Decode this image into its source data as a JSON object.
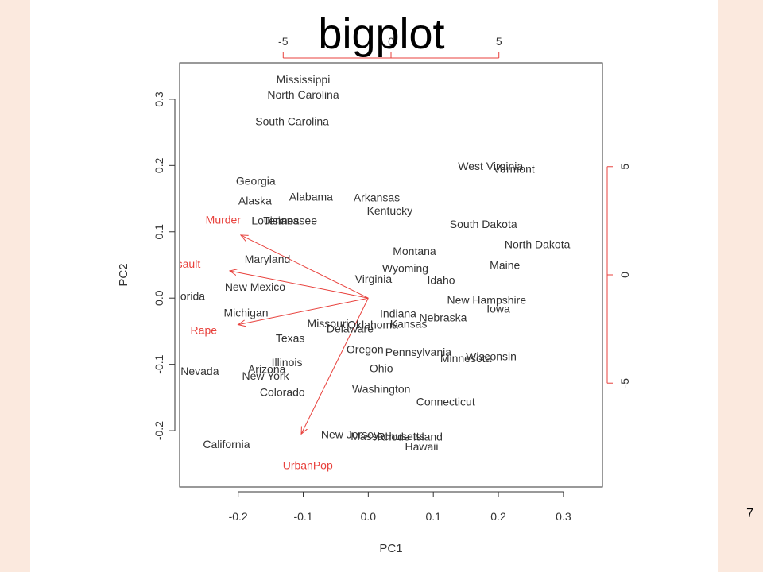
{
  "slide": {
    "title": "bigplot",
    "page_number": "7"
  },
  "colors": {
    "background": "#fbe9de",
    "slide": "#ffffff",
    "points": "#333333",
    "loadings": "#e8413c",
    "axis": "#333333"
  },
  "chart_data": {
    "type": "scatter",
    "subtype": "biplot",
    "title": "",
    "xlabel": "PC1",
    "ylabel": "PC2",
    "xlim": [
      -0.29,
      0.36
    ],
    "ylim": [
      -0.285,
      0.355
    ],
    "x_ticks": [
      "-0.2",
      "-0.1",
      "0.0",
      "0.1",
      "0.2",
      "0.3"
    ],
    "x_tick_values": [
      -0.2,
      -0.1,
      0.0,
      0.1,
      0.2,
      0.3
    ],
    "y_ticks": [
      "-0.2",
      "-0.1",
      "0.0",
      "0.1",
      "0.2",
      "0.3"
    ],
    "y_tick_values": [
      -0.2,
      -0.1,
      0.0,
      0.1,
      0.2,
      0.3
    ],
    "top_axis": {
      "ticks": [
        "-5",
        "0",
        "5"
      ],
      "values": [
        -5,
        0,
        5
      ],
      "color": "#e8413c"
    },
    "right_axis": {
      "ticks": [
        "-5",
        "0",
        "5"
      ],
      "values": [
        -5,
        0,
        5
      ],
      "color": "#e8413c"
    },
    "secondary_range": [
      -9.8,
      9.8
    ],
    "points": [
      {
        "label": "Mississippi",
        "x": -0.1,
        "y": 0.33
      },
      {
        "label": "North Carolina",
        "x": -0.1,
        "y": 0.307
      },
      {
        "label": "South Carolina",
        "x": -0.117,
        "y": 0.267
      },
      {
        "label": "West Virginia",
        "x": 0.188,
        "y": 0.199
      },
      {
        "label": "Vermont",
        "x": 0.224,
        "y": 0.195
      },
      {
        "label": "Georgia",
        "x": -0.173,
        "y": 0.177
      },
      {
        "label": "Alabama",
        "x": -0.088,
        "y": 0.153
      },
      {
        "label": "Arkansas",
        "x": 0.013,
        "y": 0.152
      },
      {
        "label": "Alaska",
        "x": -0.174,
        "y": 0.147
      },
      {
        "label": "Kentucky",
        "x": 0.033,
        "y": 0.132
      },
      {
        "label": "Louisiana",
        "x": -0.143,
        "y": 0.117
      },
      {
        "label": "Tennessee",
        "x": -0.12,
        "y": 0.117
      },
      {
        "label": "South Dakota",
        "x": 0.177,
        "y": 0.112
      },
      {
        "label": "North Dakota",
        "x": 0.26,
        "y": 0.081
      },
      {
        "label": "Montana",
        "x": 0.071,
        "y": 0.071
      },
      {
        "label": "Maryland",
        "x": -0.155,
        "y": 0.059
      },
      {
        "label": "Maine",
        "x": 0.21,
        "y": 0.05
      },
      {
        "label": "Wyoming",
        "x": 0.057,
        "y": 0.045
      },
      {
        "label": "Virginia",
        "x": 0.008,
        "y": 0.029
      },
      {
        "label": "Idaho",
        "x": 0.112,
        "y": 0.027
      },
      {
        "label": "New Mexico",
        "x": -0.174,
        "y": 0.017
      },
      {
        "label": "Florida",
        "x": -0.277,
        "y": 0.003
      },
      {
        "label": "New Hampshire",
        "x": 0.182,
        "y": -0.003
      },
      {
        "label": "Iowa",
        "x": 0.2,
        "y": -0.016
      },
      {
        "label": "Michigan",
        "x": -0.188,
        "y": -0.022
      },
      {
        "label": "Indiana",
        "x": 0.046,
        "y": -0.023
      },
      {
        "label": "Nebraska",
        "x": 0.115,
        "y": -0.029
      },
      {
        "label": "Missouri",
        "x": -0.062,
        "y": -0.038
      },
      {
        "label": "Oklahoma",
        "x": 0.007,
        "y": -0.04
      },
      {
        "label": "Kansas",
        "x": 0.062,
        "y": -0.039
      },
      {
        "label": "Delaware",
        "x": -0.028,
        "y": -0.046
      },
      {
        "label": "Texas",
        "x": -0.12,
        "y": -0.06
      },
      {
        "label": "Oregon",
        "x": -0.005,
        "y": -0.077
      },
      {
        "label": "Pennsylvania",
        "x": 0.077,
        "y": -0.081
      },
      {
        "label": "Wisconsin",
        "x": 0.189,
        "y": -0.088
      },
      {
        "label": "Minnesota",
        "x": 0.15,
        "y": -0.091
      },
      {
        "label": "Illinois",
        "x": -0.125,
        "y": -0.097
      },
      {
        "label": "Arizona",
        "x": -0.156,
        "y": -0.107
      },
      {
        "label": "Ohio",
        "x": 0.02,
        "y": -0.106
      },
      {
        "label": "Nevada",
        "x": -0.259,
        "y": -0.11
      },
      {
        "label": "New York",
        "x": -0.158,
        "y": -0.117
      },
      {
        "label": "Colorado",
        "x": -0.132,
        "y": -0.142
      },
      {
        "label": "Washington",
        "x": 0.02,
        "y": -0.137
      },
      {
        "label": "Connecticut",
        "x": 0.119,
        "y": -0.156
      },
      {
        "label": "New Jersey",
        "x": -0.028,
        "y": -0.205
      },
      {
        "label": "Massachusetts",
        "x": 0.03,
        "y": -0.208
      },
      {
        "label": "Rhode Island",
        "x": 0.064,
        "y": -0.209
      },
      {
        "label": "Hawaii",
        "x": 0.082,
        "y": -0.224
      },
      {
        "label": "California",
        "x": -0.218,
        "y": -0.22
      }
    ],
    "loadings": [
      {
        "label": "Murder",
        "x": -0.196,
        "y": 0.095,
        "label_x": -0.223,
        "label_y": 0.118
      },
      {
        "label": "Assault",
        "x": -0.213,
        "y": 0.041,
        "label_x": -0.286,
        "label_y": 0.052
      },
      {
        "label": "Rape",
        "x": -0.2,
        "y": -0.04,
        "label_x": -0.253,
        "label_y": -0.048
      },
      {
        "label": "UrbanPop",
        "x": -0.103,
        "y": -0.205,
        "label_x": -0.093,
        "label_y": -0.252
      }
    ]
  }
}
